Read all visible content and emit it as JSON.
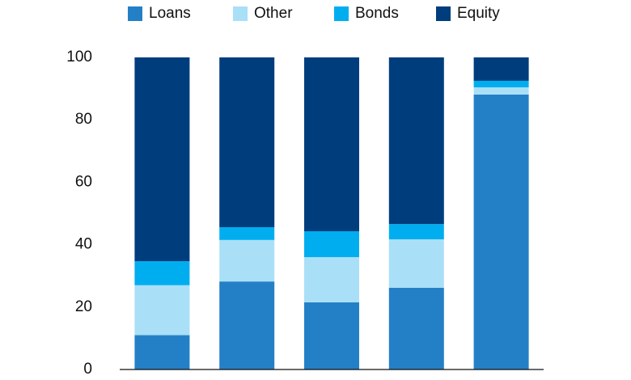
{
  "chart_data": {
    "type": "stacked-bar",
    "categories": [
      null,
      null,
      null,
      null,
      null
    ],
    "series": [
      {
        "name": "Loans",
        "color": "#2480c6",
        "values": [
          11,
          28.2,
          21.5,
          26.2,
          88.1
        ]
      },
      {
        "name": "Other",
        "color": "#aadff8",
        "values": [
          16,
          13.3,
          14.5,
          15.5,
          2.3
        ]
      },
      {
        "name": "Bonds",
        "color": "#00aeef",
        "values": [
          7.7,
          4.1,
          8.3,
          4.9,
          2.1
        ]
      },
      {
        "name": "Equity",
        "color": "#003d7d",
        "values": [
          65.3,
          54.4,
          55.7,
          53.4,
          7.5
        ]
      }
    ],
    "ylim": [
      0,
      100
    ],
    "yticks": [
      0,
      20,
      40,
      60,
      80,
      100
    ],
    "grid": false,
    "legend": "top"
  }
}
